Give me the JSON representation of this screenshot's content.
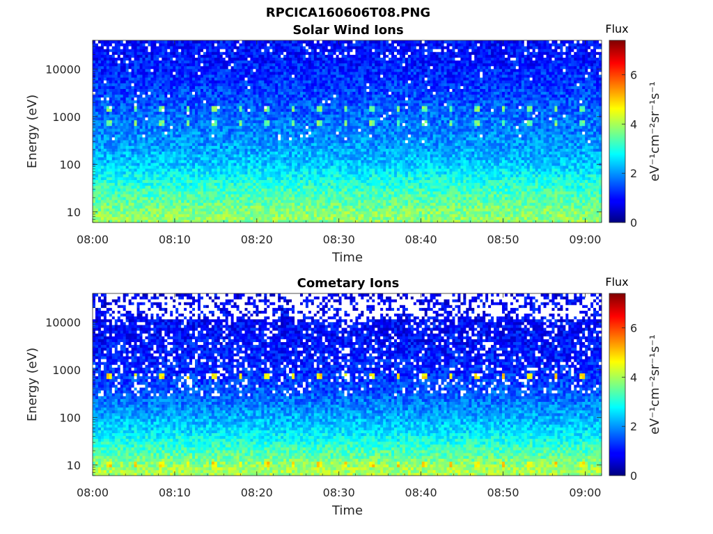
{
  "figure_title": "RPCICA160606T08.PNG",
  "colors": {
    "colormap": "jet",
    "missing_data": "#ffffff"
  },
  "chart_data": [
    {
      "type": "heatmap",
      "title": "Solar Wind Ions",
      "xlabel": "Time",
      "ylabel": "Energy (eV)",
      "x_range": [
        "08:00",
        "09:02"
      ],
      "x_ticks": [
        "08:00",
        "08:10",
        "08:20",
        "08:30",
        "08:40",
        "08:50",
        "09:00"
      ],
      "y_scale": "log",
      "y_range": [
        6,
        40000
      ],
      "y_ticks": [
        10,
        100,
        1000,
        10000
      ],
      "y_tick_labels": [
        "10",
        "100",
        "1000",
        "10000"
      ],
      "colorbar": {
        "title": "Flux",
        "label": "eV⁻¹cm⁻²sr⁻¹s⁻¹",
        "range": [
          0,
          7.4
        ],
        "ticks": [
          0,
          2,
          4,
          6
        ],
        "tick_labels": [
          "0",
          "2",
          "4",
          "6"
        ]
      },
      "features": {
        "flux_profile_by_energy": [
          {
            "energy_eV": 8,
            "flux": 3.8
          },
          {
            "energy_eV": 20,
            "flux": 3.4
          },
          {
            "energy_eV": 50,
            "flux": 2.9
          },
          {
            "energy_eV": 100,
            "flux": 2.4
          },
          {
            "energy_eV": 300,
            "flux": 2.0
          },
          {
            "energy_eV": 1000,
            "flux": 1.7
          },
          {
            "energy_eV": 5000,
            "flux": 1.3
          },
          {
            "energy_eV": 15000,
            "flux": 1.1
          },
          {
            "energy_eV": 40000,
            "flux": 1.0
          }
        ],
        "periodic_peak_energies_eV": [
          700,
          1500
        ],
        "periodic_peak_flux": 3.6,
        "periodic_peak_period_min": 3.2,
        "missing_data_above_eV": 15000,
        "missing_data_fraction_high_energy": 0.06
      }
    },
    {
      "type": "heatmap",
      "title": "Cometary Ions",
      "xlabel": "Time",
      "ylabel": "Energy (eV)",
      "x_range": [
        "08:00",
        "09:02"
      ],
      "x_ticks": [
        "08:00",
        "08:10",
        "08:20",
        "08:30",
        "08:40",
        "08:50",
        "09:00"
      ],
      "y_scale": "log",
      "y_range": [
        6,
        40000
      ],
      "y_ticks": [
        10,
        100,
        1000,
        10000
      ],
      "y_tick_labels": [
        "10",
        "100",
        "1000",
        "10000"
      ],
      "colorbar": {
        "title": "Flux",
        "label": "eV⁻¹cm⁻²sr⁻¹s⁻¹",
        "range": [
          0,
          7.4
        ],
        "ticks": [
          0,
          2,
          4,
          6
        ],
        "tick_labels": [
          "0",
          "2",
          "4",
          "6"
        ]
      },
      "features": {
        "flux_profile_by_energy": [
          {
            "energy_eV": 8,
            "flux": 4.0
          },
          {
            "energy_eV": 20,
            "flux": 3.3
          },
          {
            "energy_eV": 50,
            "flux": 2.6
          },
          {
            "energy_eV": 100,
            "flux": 2.2
          },
          {
            "energy_eV": 300,
            "flux": 1.6
          },
          {
            "energy_eV": 1000,
            "flux": 1.2
          },
          {
            "energy_eV": 5000,
            "flux": 1.0
          },
          {
            "energy_eV": 15000,
            "flux": 0.9
          },
          {
            "energy_eV": 40000,
            "flux": 0.8
          }
        ],
        "periodic_peak_energies_eV": [
          700,
          10
        ],
        "periodic_peak_flux": 4.8,
        "periodic_peak_period_min": 3.2,
        "missing_data_above_eV": 12000,
        "missing_data_fraction_high_energy": 0.5
      }
    }
  ]
}
